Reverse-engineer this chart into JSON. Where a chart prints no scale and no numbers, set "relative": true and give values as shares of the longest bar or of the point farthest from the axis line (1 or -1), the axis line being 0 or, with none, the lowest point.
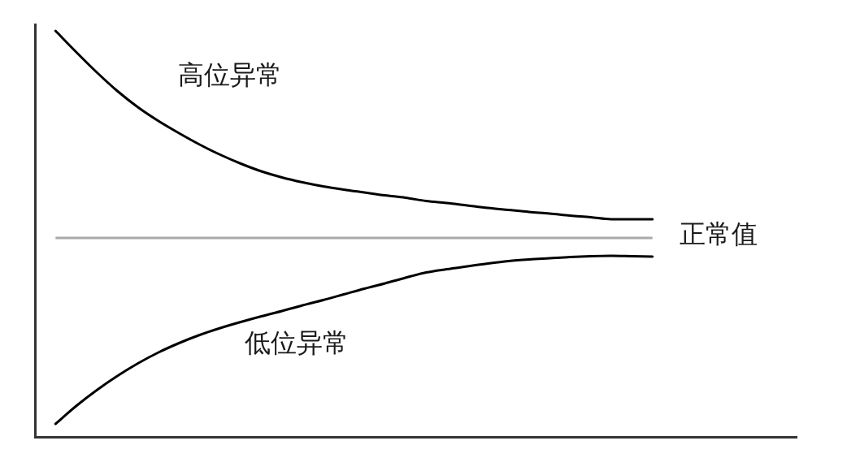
{
  "chart_data": {
    "type": "line",
    "relative": true,
    "legend": false,
    "categories": [
      null,
      null,
      null,
      null,
      null,
      null,
      null,
      null,
      null,
      null,
      null,
      null,
      null,
      null,
      null,
      null,
      null,
      null,
      null,
      null,
      null,
      null,
      null,
      null,
      null,
      null,
      null,
      null,
      null,
      null,
      null,
      null,
      null,
      null,
      null,
      null,
      null,
      null
    ],
    "series": [
      {
        "name": "高位异常",
        "color": "#000000",
        "values": [
          null,
          1,
          0.948,
          0.898,
          0.852,
          0.812,
          0.778,
          0.748,
          0.72,
          0.695,
          0.673,
          0.654,
          0.639,
          0.627,
          0.617,
          0.609,
          0.602,
          0.595,
          0.589,
          0.581,
          0.576,
          0.57,
          0.564,
          0.559,
          0.554,
          0.55,
          0.545,
          0.541,
          0.536,
          0.536,
          0.536,
          null,
          null,
          null,
          null,
          null,
          null,
          null
        ]
      },
      {
        "name": "低位异常",
        "color": "#000000",
        "values": [
          null,
          0.032,
          0.076,
          0.115,
          0.15,
          0.181,
          0.208,
          0.231,
          0.251,
          0.268,
          0.283,
          0.297,
          0.31,
          0.324,
          0.337,
          0.351,
          0.365,
          0.378,
          0.392,
          0.405,
          0.413,
          0.42,
          0.427,
          0.433,
          0.437,
          0.44,
          0.443,
          0.445,
          0.446,
          0.445,
          0.444,
          null,
          null,
          null,
          null,
          null,
          null,
          null
        ]
      }
    ],
    "ref_lines": [
      {
        "axis": "y",
        "value": 0.49,
        "label": "正常值",
        "color": "#aaaaaa"
      }
    ]
  }
}
